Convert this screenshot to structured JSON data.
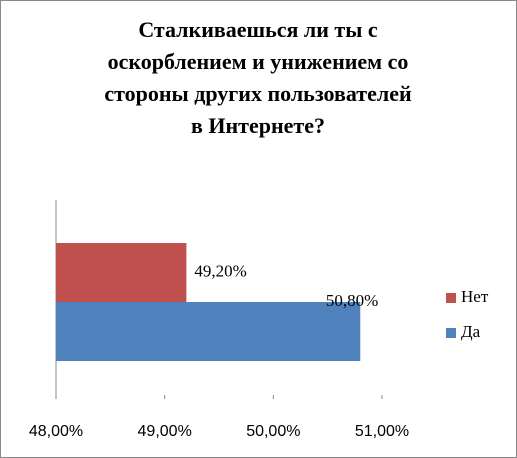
{
  "chart_data": {
    "type": "bar",
    "orientation": "horizontal",
    "title": "Сталкиваешься ли ты с оскорблением и унижением со стороны других пользователей в Интернете?",
    "categories": [
      null
    ],
    "series": [
      {
        "name": "Нет",
        "color": "#c0504d",
        "values": [
          49.2
        ],
        "value_labels": [
          "49,20%"
        ]
      },
      {
        "name": "Да",
        "color": "#4f81bd",
        "values": [
          50.8
        ],
        "value_labels": [
          "50,80%"
        ]
      }
    ],
    "xlim": [
      48,
      51
    ],
    "xticks": [
      {
        "value": 48,
        "label": "48,00%"
      },
      {
        "value": 49,
        "label": "49,00%"
      },
      {
        "value": 50,
        "label": "50,00%"
      },
      {
        "value": 51,
        "label": "51,00%"
      }
    ],
    "legend": "right"
  }
}
